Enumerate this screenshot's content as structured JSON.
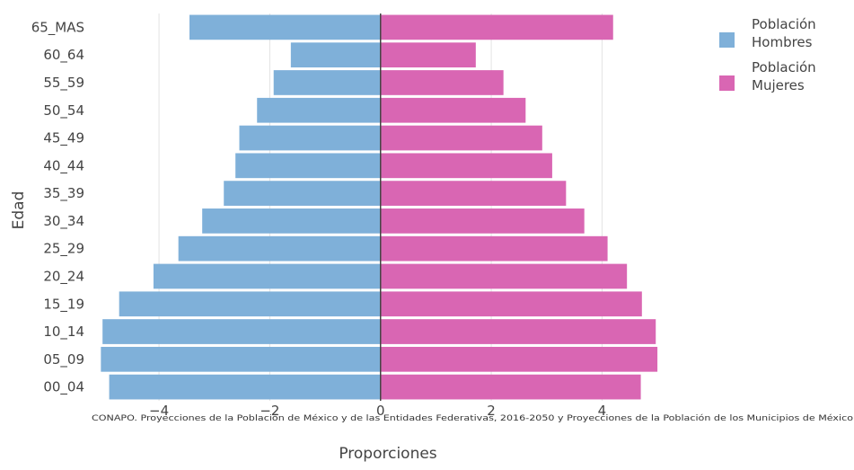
{
  "chart_data": {
    "type": "bar",
    "orientation": "horizontal",
    "categories": [
      "65_MAS",
      "60_64",
      "55_59",
      "50_54",
      "45_49",
      "40_44",
      "35_39",
      "30_34",
      "25_29",
      "20_24",
      "15_19",
      "10_14",
      "05_09",
      "00_04"
    ],
    "series": [
      {
        "name": "Población Hombres",
        "color": "#7fb0d9",
        "values": [
          -3.45,
          -1.62,
          -1.93,
          -2.23,
          -2.55,
          -2.62,
          -2.83,
          -3.22,
          -3.65,
          -4.1,
          -4.72,
          -5.02,
          -5.05,
          -4.9
        ]
      },
      {
        "name": "Población Mujeres",
        "color": "#d966b3",
        "values": [
          4.2,
          1.72,
          2.22,
          2.62,
          2.92,
          3.1,
          3.35,
          3.68,
          4.1,
          4.45,
          4.72,
          4.97,
          5.0,
          4.7
        ]
      }
    ],
    "x_ticks": [
      -4,
      -2,
      0,
      2,
      4
    ],
    "x_tick_labels": [
      "−4",
      "−2",
      "0",
      "2",
      "4"
    ],
    "xlim": [
      -5.25,
      8.55
    ],
    "xlabel": "Proporciones",
    "ylabel": "Edad",
    "source_note": "CONAPO. Proyecciones de la Población de México y de las Entidades Federativas, 2016-2050 y Proyecciones de la Población de los Municipios de México",
    "grid": true,
    "legend_position": "top-right",
    "legend_labels": [
      [
        "Población",
        "Hombres"
      ],
      [
        "Población",
        "Mujeres"
      ]
    ]
  }
}
